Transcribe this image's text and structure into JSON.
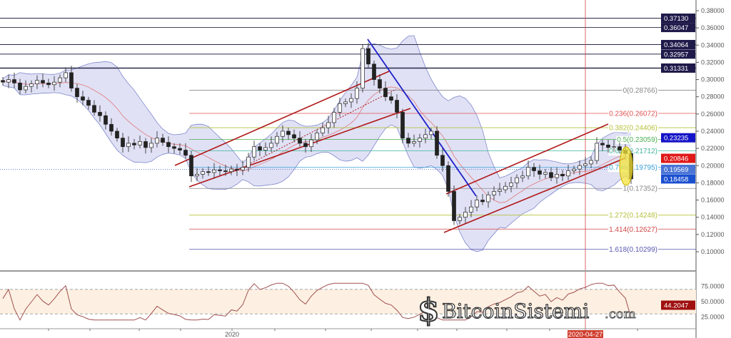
{
  "chart_data": {
    "type": "candlestick",
    "price_axis": {
      "ticks": [
        "0.38000",
        "0.36000",
        "0.34000",
        "0.32000",
        "0.30000",
        "0.28000",
        "0.26000",
        "0.24000",
        "0.22000",
        "0.20000",
        "0.18000",
        "0.16000",
        "0.14000",
        "0.12000",
        "0.10000"
      ],
      "ylim": [
        0.095,
        0.392
      ]
    },
    "closes": [
      0.297,
      0.3,
      0.296,
      0.288,
      0.292,
      0.295,
      0.299,
      0.296,
      0.294,
      0.297,
      0.302,
      0.308,
      0.29,
      0.28,
      0.276,
      0.27,
      0.262,
      0.258,
      0.248,
      0.24,
      0.232,
      0.222,
      0.226,
      0.224,
      0.228,
      0.221,
      0.226,
      0.232,
      0.227,
      0.222,
      0.22,
      0.218,
      0.212,
      0.188,
      0.19,
      0.193,
      0.192,
      0.195,
      0.194,
      0.193,
      0.196,
      0.195,
      0.198,
      0.21,
      0.222,
      0.218,
      0.221,
      0.226,
      0.234,
      0.24,
      0.236,
      0.232,
      0.226,
      0.222,
      0.23,
      0.238,
      0.244,
      0.25,
      0.262,
      0.272,
      0.274,
      0.278,
      0.29,
      0.336,
      0.318,
      0.3,
      0.29,
      0.28,
      0.276,
      0.262,
      0.232,
      0.226,
      0.228,
      0.232,
      0.236,
      0.24,
      0.212,
      0.2,
      0.17,
      0.136,
      0.14,
      0.146,
      0.152,
      0.16,
      0.158,
      0.166,
      0.17,
      0.172,
      0.176,
      0.18,
      0.186,
      0.188,
      0.198,
      0.194,
      0.19,
      0.192,
      0.186,
      0.19,
      0.188,
      0.194,
      0.196,
      0.2,
      0.202,
      0.206,
      0.226,
      0.224,
      0.221,
      0.222,
      0.218,
      0.214,
      0.1846
    ],
    "horizontal_levels": [
      {
        "value": 0.3713,
        "label": "0.37130"
      },
      {
        "value": 0.36047,
        "label": "0.36047"
      },
      {
        "value": 0.34064,
        "label": "0.34064"
      },
      {
        "value": 0.32957,
        "label": "0.32957"
      },
      {
        "value": 0.31331,
        "label": "0.31331"
      }
    ],
    "fibonacci": [
      {
        "label": "0(0.28766)",
        "value": 0.28766,
        "color": "#888888"
      },
      {
        "label": "0.236(0.26072)",
        "value": 0.26072,
        "color": "#e05050"
      },
      {
        "label": "0.382(0.24406)",
        "value": 0.24406,
        "color": "#b5c23a"
      },
      {
        "label": "0.5(0.23059)",
        "value": 0.23059,
        "color": "#4caf50"
      },
      {
        "label": "0.618(0.21712)",
        "value": 0.21712,
        "color": "#3fb59a"
      },
      {
        "label": "0.786(0.19795)",
        "value": 0.19795,
        "color": "#3a9fd6"
      },
      {
        "label": "1(0.17352)",
        "value": 0.17352,
        "color": "#888888"
      },
      {
        "label": "1.272(0.14248)",
        "value": 0.14248,
        "color": "#b5c23a"
      },
      {
        "label": "1.414(0.12627)",
        "value": 0.12627,
        "color": "#d04848"
      },
      {
        "label": "1.618(0.10299)",
        "value": 0.10299,
        "color": "#5858b0"
      }
    ],
    "price_badges": [
      {
        "label": "0.23235",
        "value": 0.23235,
        "color": "#1414c8"
      },
      {
        "label": "0.20846",
        "value": 0.20846,
        "color": "#e01818"
      },
      {
        "label": "0.19569",
        "value": 0.19569,
        "color": "#4a74d6"
      },
      {
        "label": "0.18458",
        "value": 0.18458,
        "color": "#1a4fd0"
      }
    ],
    "indicators": [
      "Bollinger Bands",
      "RSI"
    ],
    "rsi_axis": {
      "ticks": [
        "75.0000",
        "50.0000",
        "25.0000"
      ],
      "ylim": [
        0,
        100
      ],
      "bands": [
        70,
        30
      ]
    },
    "rsi_last": "44.2047",
    "time_axis": {
      "labels": [
        "2020"
      ],
      "marker": "2020-04-27"
    },
    "colors": {
      "bb_fill": "#d8daf2",
      "bb_line": "#8088cc",
      "bb_mid": "#e07a7a",
      "channel": "#b01818",
      "trend": "#2020c8",
      "rsi": "#a05050",
      "level": "#2a2a4a"
    }
  },
  "watermark": {
    "text": "BitcoinSistemi",
    "suffix": ".com"
  }
}
